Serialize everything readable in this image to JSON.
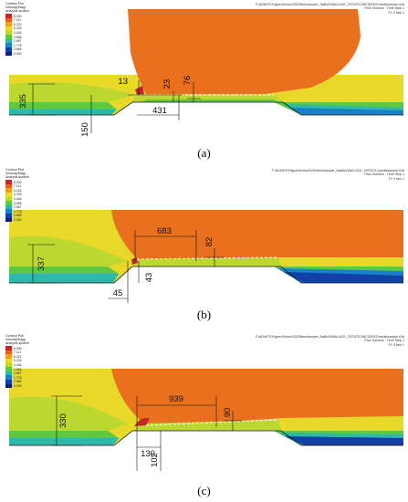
{
  "legend": {
    "title_lines": [
      "Contour Plot",
      "Velocity(Mag)",
      "Analysis system"
    ],
    "values": [
      "8.000",
      "7.111",
      "6.222",
      "5.333",
      "4.444",
      "3.556",
      "2.667",
      "1.778",
      "0.889",
      "0.000"
    ],
    "colors": [
      "#c0282a",
      "#e8601e",
      "#f0a020",
      "#e8d82a",
      "#bcd830",
      "#5ec840",
      "#2eb8a8",
      "#1a80c8",
      "#1040a8",
      "#102070"
    ]
  },
  "panels": [
    {
      "id": "a",
      "label": "(a)",
      "info_lines": [
        "F:/ADMIT/OHyperWorks/2020/New/sample_NaBd/VMA/LACE_OSTATIC/INCIDENT/result/sample.h3d",
        "Flow Solution : Time Step 1",
        "Fr: 0 fam 1"
      ],
      "dims": {
        "gap_height": "335",
        "vertical_up": "13",
        "distance": "431",
        "step_a": "23",
        "step_b": "76",
        "bottom": "150"
      }
    },
    {
      "id": "b",
      "label": "(b)",
      "info_lines": [
        "F:/ADMIT/OHyperWorks/2020/New/sample_NaBd/VMA/LACE_OSTATIC/result/sample.h3d",
        "Flow Solution : Time Step 1",
        "Fr: 0 fam 1"
      ],
      "dims": {
        "gap_height": "337",
        "length": "683",
        "step": "82",
        "left": "45",
        "bottom": "43"
      }
    },
    {
      "id": "c",
      "label": "(c)",
      "info_lines": [
        "F:/ADMIT/OHyperWorks/2020/New/sample_NaBd/VMA/LACE_OSTATIC/INCIDENT/result/sample.h3d",
        "Flow Solution : Time Step 1",
        "Fr: 0 fam 1"
      ],
      "dims": {
        "gap_height": "330",
        "length": "939",
        "step": "90",
        "left": "130",
        "bottom": "102"
      }
    }
  ]
}
